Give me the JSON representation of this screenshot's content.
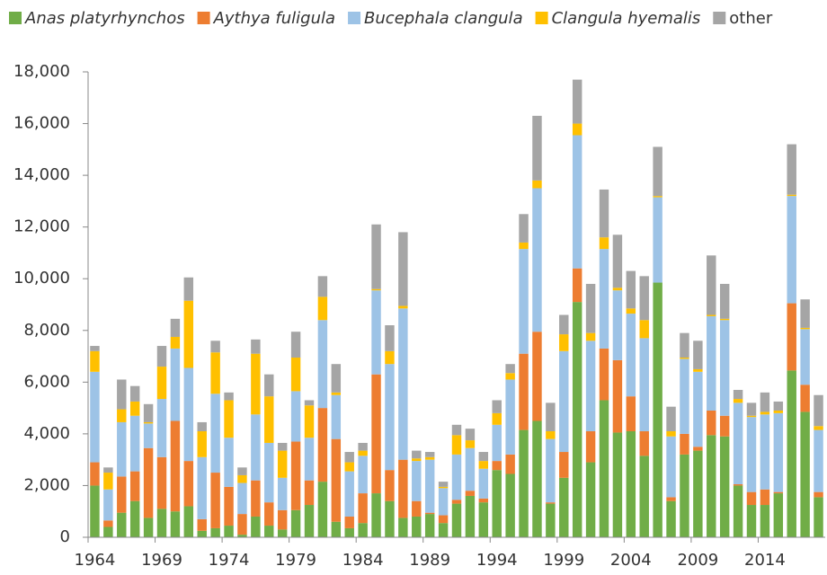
{
  "chart_data": {
    "type": "stacked-bar",
    "categories": [
      "1964",
      null,
      null,
      null,
      null,
      "1969",
      null,
      null,
      null,
      null,
      "1974",
      null,
      null,
      null,
      null,
      "1979",
      null,
      null,
      null,
      null,
      "1984",
      null,
      null,
      null,
      null,
      "1989",
      null,
      null,
      null,
      null,
      "1994",
      null,
      null,
      null,
      null,
      "1999",
      null,
      null,
      null,
      null,
      "2004",
      null,
      null,
      null,
      null,
      "2009",
      null,
      null,
      null,
      null,
      "2014",
      null,
      null,
      null,
      null
    ],
    "series": [
      {
        "name": "Anas platyrhynchos",
        "color": "#70ad47",
        "values": [
          2000,
          400,
          950,
          1400,
          750,
          1100,
          1000,
          1200,
          250,
          350,
          450,
          100,
          800,
          450,
          300,
          1050,
          1250,
          2150,
          600,
          350,
          550,
          1700,
          1400,
          750,
          800,
          900,
          550,
          1300,
          1600,
          1350,
          2600,
          2450,
          4150,
          4500,
          1300,
          2300,
          9100,
          2900,
          5300,
          4050,
          4100,
          3150,
          9850,
          1400,
          3200,
          3350,
          3950,
          3900,
          2000,
          1250,
          1250,
          1700,
          6450,
          4850,
          1550
        ]
      },
      {
        "name": "Aythya fuligula",
        "color": "#ed7d31",
        "values": [
          900,
          250,
          1400,
          1150,
          2700,
          2000,
          3500,
          1750,
          450,
          2150,
          1500,
          800,
          1400,
          900,
          750,
          2650,
          950,
          2850,
          3200,
          450,
          1150,
          4600,
          1200,
          2250,
          600,
          50,
          300,
          150,
          200,
          150,
          350,
          750,
          2950,
          3450,
          50,
          1000,
          1300,
          1200,
          2000,
          2800,
          1350,
          950,
          0,
          150,
          800,
          150,
          950,
          800,
          50,
          500,
          600,
          50,
          2600,
          1050,
          200
        ]
      },
      {
        "name": "Bucephala clangula",
        "color": "#9dc3e6",
        "values": [
          3500,
          1200,
          2100,
          2150,
          950,
          2250,
          2800,
          3600,
          2400,
          3050,
          1900,
          1200,
          2550,
          2300,
          1250,
          1950,
          1650,
          3400,
          1700,
          1750,
          1450,
          3250,
          4100,
          5850,
          1550,
          2050,
          1050,
          1750,
          1650,
          1150,
          1400,
          2900,
          4050,
          5550,
          2450,
          3900,
          5150,
          3500,
          3850,
          2700,
          3200,
          3600,
          3300,
          2350,
          2900,
          2900,
          3650,
          3700,
          3150,
          2900,
          2900,
          3050,
          4150,
          2150,
          2400
        ]
      },
      {
        "name": "Clangula hyemalis",
        "color": "#ffc000",
        "values": [
          800,
          650,
          500,
          550,
          50,
          1250,
          450,
          2600,
          1000,
          1600,
          1450,
          300,
          2350,
          1800,
          1050,
          1300,
          1250,
          900,
          100,
          350,
          200,
          50,
          500,
          100,
          100,
          100,
          50,
          750,
          300,
          300,
          450,
          250,
          250,
          300,
          300,
          650,
          450,
          300,
          450,
          100,
          200,
          700,
          50,
          200,
          50,
          100,
          50,
          50,
          150,
          50,
          100,
          100,
          50,
          50,
          150
        ]
      },
      {
        "name": "other",
        "color": "#a5a5a5",
        "values": [
          200,
          200,
          1150,
          600,
          700,
          800,
          700,
          900,
          350,
          450,
          300,
          300,
          550,
          850,
          300,
          1000,
          200,
          800,
          1100,
          400,
          300,
          2500,
          1000,
          2850,
          300,
          200,
          200,
          400,
          450,
          350,
          500,
          350,
          1100,
          2500,
          1100,
          750,
          1700,
          1900,
          1850,
          2050,
          1450,
          1700,
          1900,
          950,
          950,
          1100,
          2300,
          1350,
          350,
          500,
          750,
          350,
          1950,
          1100,
          1200
        ]
      }
    ],
    "ylim": [
      0,
      18000
    ],
    "yticks": [
      0,
      {
        "value": 2000,
        "label": "2,000"
      },
      {
        "value": 4000,
        "label": "4,000"
      },
      {
        "value": 6000,
        "label": "6,000"
      },
      {
        "value": 8000,
        "label": "8,000"
      },
      {
        "value": 10000,
        "label": "10,000"
      },
      {
        "value": 12000,
        "label": "12,000"
      },
      {
        "value": 14000,
        "label": "14,000"
      },
      {
        "value": 16000,
        "label": "16,000"
      },
      {
        "value": 18000,
        "label": "18,000"
      }
    ],
    "legend": "top",
    "grid": false
  }
}
